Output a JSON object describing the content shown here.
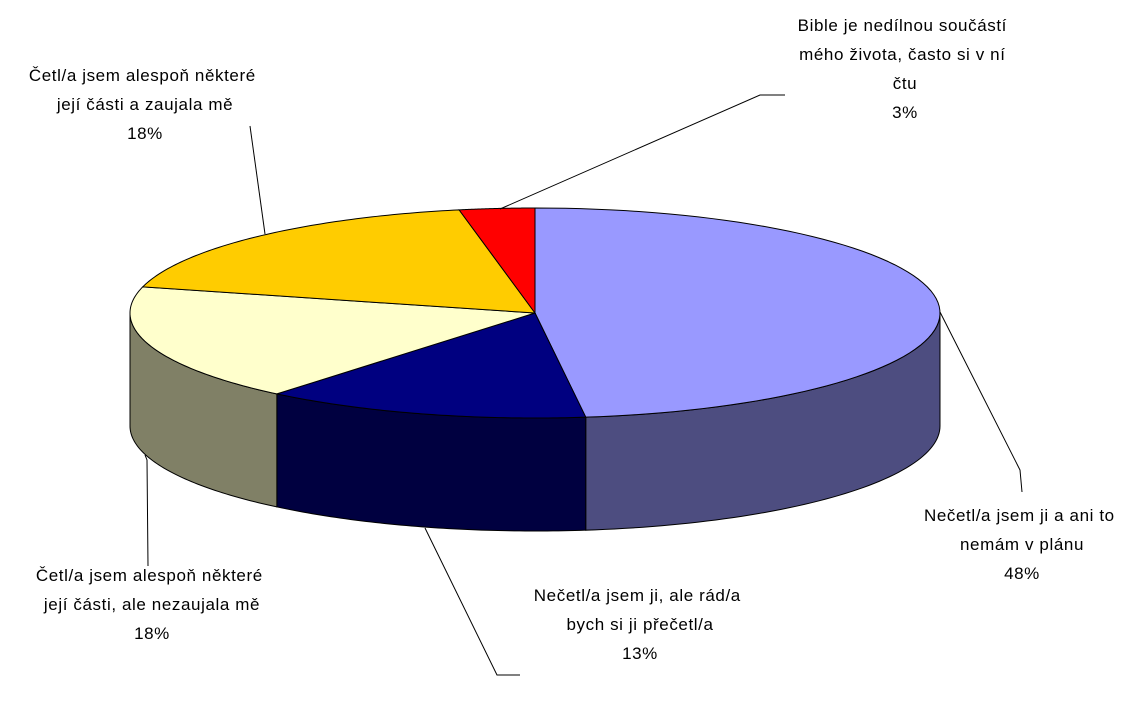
{
  "chart_data": {
    "type": "pie",
    "categories": [
      "Nečetl/a jsem ji a ani to nemám v plánu",
      "Nečetl/a jsem ji, ale rád/a bych si ji přečetl/a",
      "Četl/a jsem alespoň některé její části, ale nezaujala mě",
      "Četl/a jsem alespoň některé její části a zaujala mě",
      "Bible je nedílnou součástí mého života, často si v ní čtu"
    ],
    "values": [
      48,
      13,
      18,
      18,
      3
    ],
    "value_labels": [
      "48%",
      "13%",
      "18%",
      "18%",
      "3%"
    ],
    "colors": [
      "#9999ff",
      "#000080",
      "#ffffcc",
      "#ffcc00",
      "#ff0000"
    ]
  }
}
